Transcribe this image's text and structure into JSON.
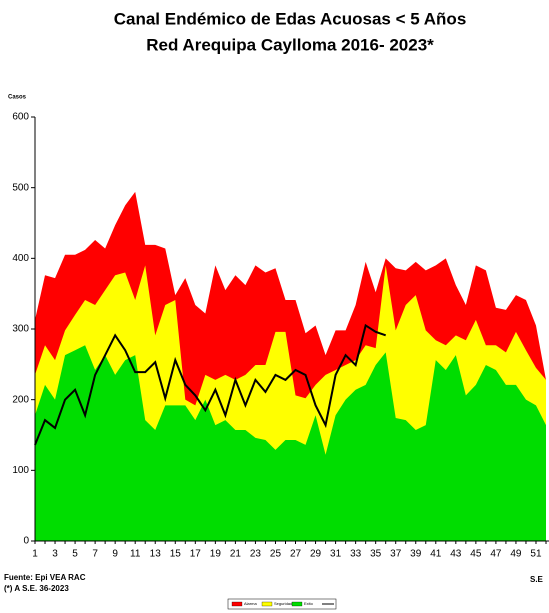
{
  "chart_data": {
    "type": "area",
    "title": "Canal Endémico de Edas Acuosas  < 5 Años",
    "subtitle": "Red Arequipa Caylloma 2016- 2023*",
    "y_label": "Casos",
    "x_label": "S.E",
    "source": "Fuente: Epi VEA RAC",
    "note": "(*) A S.E. 36-2023",
    "categories": [
      1,
      null,
      3,
      null,
      5,
      null,
      7,
      null,
      9,
      null,
      11,
      null,
      13,
      null,
      15,
      null,
      17,
      null,
      19,
      null,
      21,
      null,
      23,
      null,
      25,
      null,
      27,
      null,
      29,
      null,
      31,
      null,
      33,
      null,
      35,
      null,
      37,
      null,
      39,
      null,
      41,
      null,
      43,
      null,
      45,
      null,
      47,
      null,
      49,
      null,
      51,
      null
    ],
    "ylim": [
      0,
      600
    ],
    "yticks": [
      0,
      100,
      200,
      300,
      400,
      500,
      600
    ],
    "series": [
      {
        "name": "Alarma",
        "color": "#ff0000",
        "values": [
          313,
          376,
          372,
          405,
          405,
          412,
          426,
          414,
          447,
          475,
          494,
          419,
          419,
          414,
          348,
          372,
          334,
          322,
          390,
          355,
          376,
          362,
          390,
          380,
          386,
          341,
          341,
          294,
          305,
          263,
          298,
          298,
          334,
          395,
          352,
          400,
          386,
          383,
          395,
          383,
          390,
          400,
          362,
          334,
          390,
          383,
          330,
          327,
          348,
          341,
          305,
          228
        ]
      },
      {
        "name": "Seguridad",
        "color": "#ffff00",
        "values": [
          235,
          277,
          256,
          298,
          320,
          341,
          334,
          355,
          376,
          380,
          341,
          390,
          291,
          334,
          341,
          200,
          192,
          235,
          228,
          235,
          228,
          235,
          249,
          249,
          296,
          296,
          206,
          202,
          221,
          235,
          242,
          249,
          256,
          277,
          273,
          390,
          298,
          334,
          348,
          298,
          284,
          277,
          291,
          284,
          313,
          277,
          277,
          267,
          296,
          270,
          245,
          228
        ]
      },
      {
        "name": "Exito",
        "color": "#00dd00",
        "values": [
          178,
          221,
          200,
          263,
          270,
          277,
          242,
          263,
          235,
          256,
          263,
          171,
          157,
          192,
          192,
          192,
          171,
          200,
          164,
          171,
          157,
          157,
          146,
          143,
          129,
          143,
          143,
          136,
          178,
          122,
          178,
          200,
          214,
          221,
          249,
          267,
          174,
          171,
          157,
          164,
          256,
          242,
          263,
          206,
          221,
          249,
          242,
          221,
          221,
          200,
          192,
          164
        ]
      },
      {
        "name": null,
        "type": "line",
        "color": "#000000",
        "values": [
          136,
          171,
          160,
          200,
          214,
          178,
          235,
          263,
          291,
          270,
          239,
          239,
          253,
          202,
          256,
          221,
          206,
          185,
          214,
          178,
          228,
          192,
          228,
          211,
          235,
          228,
          242,
          235,
          192,
          164,
          235,
          263,
          249,
          305,
          296,
          291,
          null,
          null,
          null,
          null,
          null,
          null,
          null,
          null,
          null,
          null,
          null,
          null,
          null,
          null,
          null,
          null
        ]
      }
    ]
  }
}
